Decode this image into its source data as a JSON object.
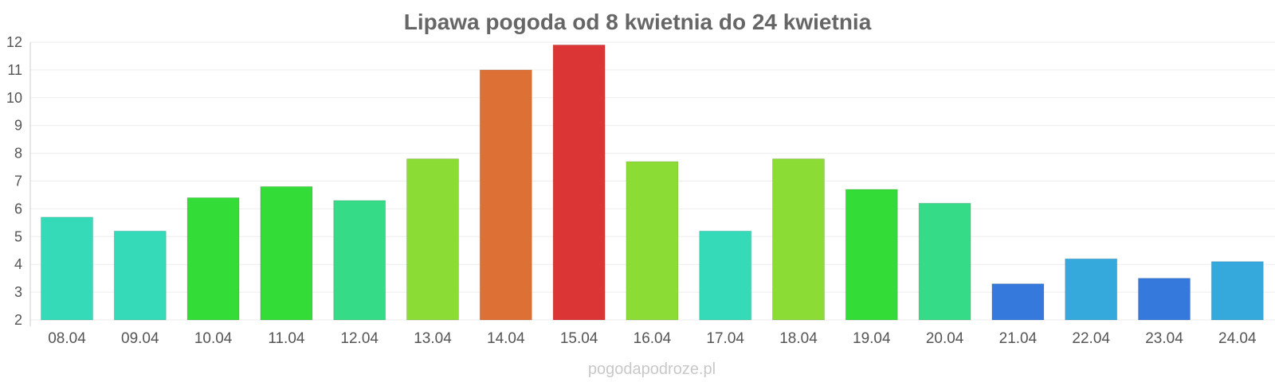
{
  "chart_data": {
    "type": "bar",
    "title": "Lipawa pogoda od 8 kwietnia do 24 kwietnia",
    "xlabel": "",
    "ylabel": "",
    "ylim": [
      2,
      12
    ],
    "yticks": [
      2,
      3,
      4,
      5,
      6,
      7,
      8,
      9,
      10,
      11,
      12
    ],
    "grid": true,
    "categories": [
      "08.04",
      "09.04",
      "10.04",
      "11.04",
      "12.04",
      "13.04",
      "14.04",
      "15.04",
      "16.04",
      "17.04",
      "18.04",
      "19.04",
      "20.04",
      "21.04",
      "22.04",
      "23.04",
      "24.04"
    ],
    "values": [
      5.7,
      5.2,
      6.4,
      6.8,
      6.3,
      7.8,
      11.0,
      11.9,
      7.7,
      5.2,
      7.8,
      6.7,
      6.2,
      3.3,
      4.2,
      3.5,
      4.1
    ],
    "colors": [
      "#35dbb8",
      "#35dbb8",
      "#33dc37",
      "#33dc37",
      "#35db87",
      "#8bdc35",
      "#dd7035",
      "#dc3535",
      "#8bdc35",
      "#35dbb8",
      "#8bdc35",
      "#33dc37",
      "#35db87",
      "#3579dc",
      "#35a9dc",
      "#3579dc",
      "#35a9dc"
    ]
  },
  "watermark": "pogodapodroze.pl"
}
